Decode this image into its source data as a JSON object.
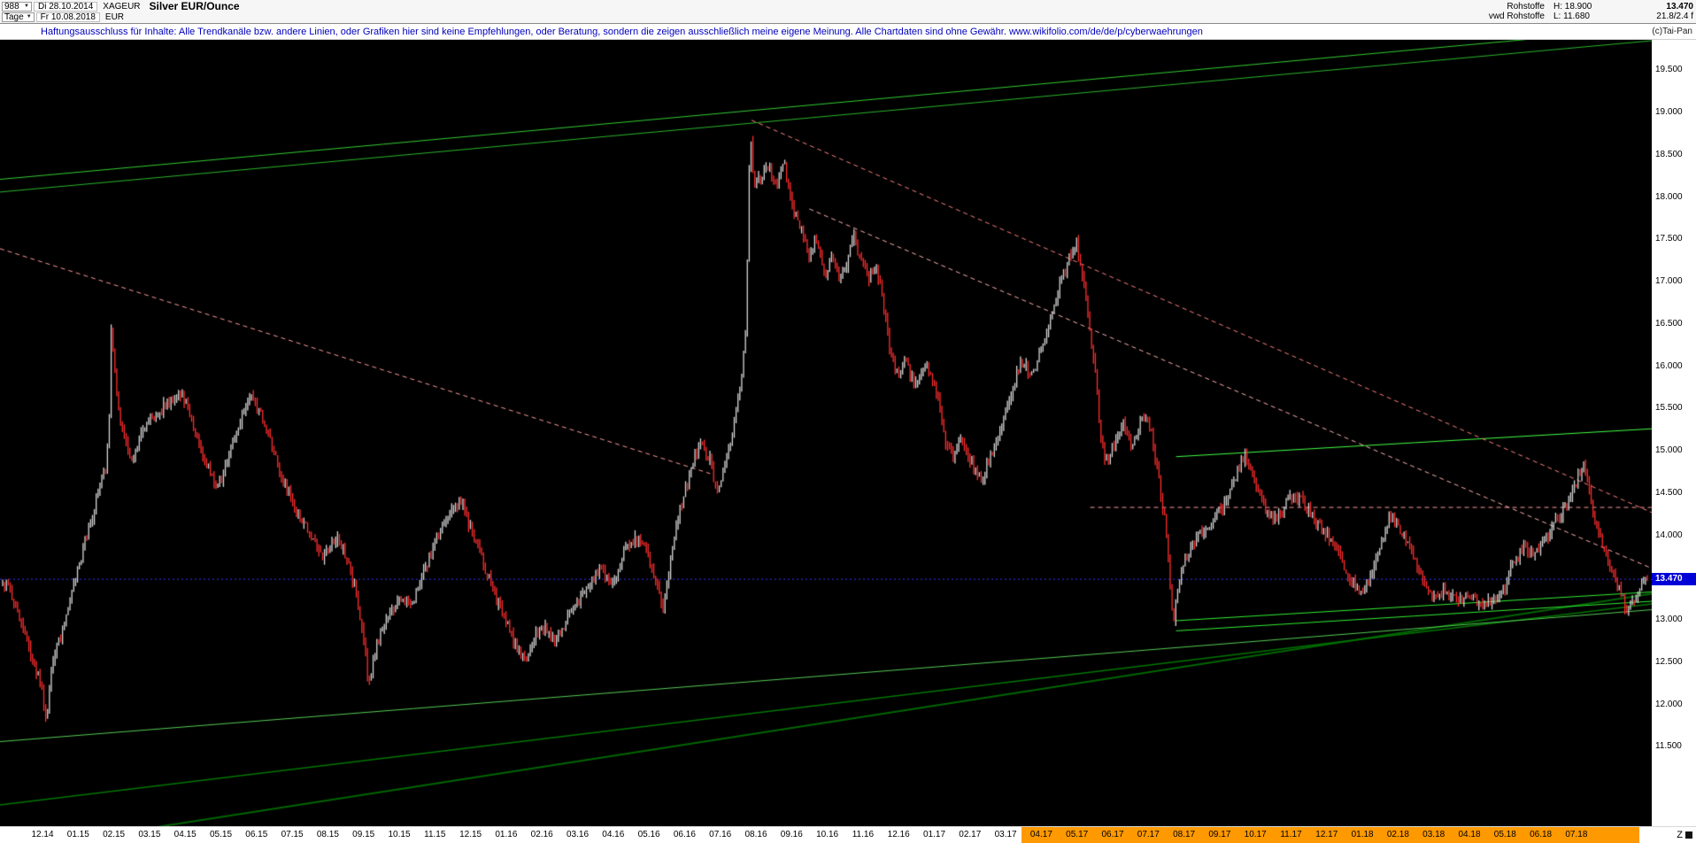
{
  "header": {
    "bars_count": "988",
    "date_start": "Di 28.10.2014",
    "symbol": "XAGEUR",
    "title": "Silver EUR/Ounce",
    "period": "Tage",
    "date_end": "Fr 10.08.2018",
    "currency": "EUR",
    "right": {
      "row1_label": "Rohstoffe",
      "row1_high": "H: 18.900",
      "row1_price": "13.470",
      "row2_label": "vwd Rohstoffe",
      "row2_low": "L: 11.680",
      "row2_extra": "21.8/2.4 f"
    }
  },
  "disclaimer": {
    "text": "Haftungsausschluss für Inhalte: Alle Trendkanäle bzw. andere Linien, oder Grafiken hier sind keine Empfehlungen, oder Beratung, sondern die zeigen ausschließlich meine eigene Meinung. Alle Chartdaten sind ohne Gewähr.  www.wikifolio.com/de/de/p/cyberwaehrungen",
    "copyright": "(c)Tai-Pan"
  },
  "corner_label": "Z",
  "chart_data": {
    "type": "ohlc-bar",
    "title": "Silver EUR/Ounce",
    "symbol": "XAGEUR",
    "currency": "EUR",
    "period": "Tage",
    "bars": "988",
    "date_range": [
      "Di 28.10.2014",
      "Fr 10.08.2018"
    ],
    "high": 18.9,
    "low": 11.68,
    "last": 13.47,
    "last_label": "13.470",
    "ylim": [
      10.55,
      19.85
    ],
    "y_ticks": [
      "19.500",
      "19.000",
      "18.500",
      "18.000",
      "17.500",
      "17.000",
      "16.500",
      "16.000",
      "15.500",
      "15.000",
      "14.500",
      "14.000",
      "13.500",
      "13.000",
      "12.500",
      "12.000",
      "11.500"
    ],
    "x_labels": [
      "12.14",
      "01.15",
      "02.15",
      "03.15",
      "04.15",
      "05.15",
      "06.15",
      "07.15",
      "08.15",
      "09.15",
      "10.15",
      "11.15",
      "12.15",
      "01.16",
      "02.16",
      "03.16",
      "04.16",
      "05.16",
      "06.16",
      "07.16",
      "08.16",
      "09.16",
      "10.16",
      "11.16",
      "12.16",
      "01.17",
      "02.17",
      "03.17",
      "04.17",
      "05.17",
      "06.17",
      "07.17",
      "08.17",
      "09.17",
      "10.17",
      "11.17",
      "12.17",
      "01.18",
      "02.18",
      "03.18",
      "04.18",
      "05.18",
      "06.18",
      "07.18"
    ],
    "x_highlight_start_index": 28,
    "plot": {
      "top_price": 19.85,
      "bottom_price": 10.55,
      "render_bars": 880,
      "bar_width": 1.3,
      "wiggle": 0.12,
      "x_first": 48,
      "x_step": 40.3
    },
    "colors": {
      "bg": "#000000",
      "bar_up": "#d8d8d8",
      "bar_down": "#ff2e2e",
      "price_tag_bg": "#0000d8",
      "axis_highlight": "#ff9900",
      "disclaimer_text": "#0000bb"
    },
    "price_path": [
      [
        0.003,
        13.37
      ],
      [
        0.01,
        13.05
      ],
      [
        0.018,
        12.48
      ],
      [
        0.024,
        12.2
      ],
      [
        0.0265,
        11.72
      ],
      [
        0.029,
        12.35
      ],
      [
        0.032,
        12.6
      ],
      [
        0.04,
        13.11
      ],
      [
        0.047,
        13.69
      ],
      [
        0.056,
        14.32
      ],
      [
        0.063,
        14.8
      ],
      [
        0.0655,
        15.6
      ],
      [
        0.066,
        16.45
      ],
      [
        0.069,
        15.7
      ],
      [
        0.071,
        15.4
      ],
      [
        0.078,
        14.89
      ],
      [
        0.084,
        15.15
      ],
      [
        0.092,
        15.4
      ],
      [
        0.1,
        15.55
      ],
      [
        0.108,
        15.66
      ],
      [
        0.113,
        15.5
      ],
      [
        0.121,
        14.96
      ],
      [
        0.131,
        14.54
      ],
      [
        0.14,
        15.08
      ],
      [
        0.15,
        15.66
      ],
      [
        0.158,
        15.38
      ],
      [
        0.168,
        14.77
      ],
      [
        0.177,
        14.32
      ],
      [
        0.186,
        14.03
      ],
      [
        0.195,
        13.72
      ],
      [
        0.203,
        13.98
      ],
      [
        0.21,
        13.69
      ],
      [
        0.216,
        13.18
      ],
      [
        0.2205,
        12.6
      ],
      [
        0.222,
        12.25
      ],
      [
        0.228,
        12.71
      ],
      [
        0.235,
        13.05
      ],
      [
        0.241,
        13.27
      ],
      [
        0.248,
        13.14
      ],
      [
        0.255,
        13.52
      ],
      [
        0.261,
        13.78
      ],
      [
        0.269,
        14.2
      ],
      [
        0.278,
        14.41
      ],
      [
        0.288,
        13.9
      ],
      [
        0.298,
        13.34
      ],
      [
        0.307,
        12.89
      ],
      [
        0.318,
        12.5
      ],
      [
        0.327,
        12.96
      ],
      [
        0.336,
        12.73
      ],
      [
        0.346,
        13.09
      ],
      [
        0.355,
        13.3
      ],
      [
        0.363,
        13.6
      ],
      [
        0.371,
        13.37
      ],
      [
        0.379,
        13.85
      ],
      [
        0.388,
        13.98
      ],
      [
        0.396,
        13.52
      ],
      [
        0.402,
        13.14
      ],
      [
        0.41,
        14.16
      ],
      [
        0.418,
        14.75
      ],
      [
        0.424,
        15.08
      ],
      [
        0.43,
        14.87
      ],
      [
        0.434,
        14.48
      ],
      [
        0.439,
        14.79
      ],
      [
        0.445,
        15.3
      ],
      [
        0.449,
        15.85
      ],
      [
        0.452,
        16.42
      ],
      [
        0.4545,
        18.85
      ],
      [
        0.457,
        18.1
      ],
      [
        0.46,
        18.2
      ],
      [
        0.466,
        18.35
      ],
      [
        0.471,
        18.1
      ],
      [
        0.475,
        18.4
      ],
      [
        0.48,
        17.88
      ],
      [
        0.485,
        17.63
      ],
      [
        0.491,
        17.29
      ],
      [
        0.495,
        17.54
      ],
      [
        0.5,
        17.03
      ],
      [
        0.504,
        17.29
      ],
      [
        0.509,
        16.96
      ],
      [
        0.513,
        17.21
      ],
      [
        0.517,
        17.54
      ],
      [
        0.521,
        17.29
      ],
      [
        0.526,
        17.03
      ],
      [
        0.532,
        17.11
      ],
      [
        0.536,
        16.65
      ],
      [
        0.54,
        16.14
      ],
      [
        0.544,
        15.89
      ],
      [
        0.549,
        16.04
      ],
      [
        0.555,
        15.76
      ],
      [
        0.562,
        16.02
      ],
      [
        0.569,
        15.63
      ],
      [
        0.573,
        15.12
      ],
      [
        0.578,
        14.87
      ],
      [
        0.583,
        15.17
      ],
      [
        0.59,
        14.79
      ],
      [
        0.596,
        14.66
      ],
      [
        0.603,
        15.04
      ],
      [
        0.611,
        15.53
      ],
      [
        0.619,
        16.04
      ],
      [
        0.627,
        15.89
      ],
      [
        0.635,
        16.4
      ],
      [
        0.642,
        16.91
      ],
      [
        0.649,
        17.29
      ],
      [
        0.653,
        17.47
      ],
      [
        0.658,
        16.83
      ],
      [
        0.664,
        16.04
      ],
      [
        0.667,
        15.2
      ],
      [
        0.671,
        14.82
      ],
      [
        0.677,
        15.15
      ],
      [
        0.682,
        15.3
      ],
      [
        0.687,
        14.99
      ],
      [
        0.693,
        15.43
      ],
      [
        0.698,
        15.25
      ],
      [
        0.703,
        14.66
      ],
      [
        0.708,
        13.98
      ],
      [
        0.71,
        13.3
      ],
      [
        0.712,
        12.88
      ],
      [
        0.714,
        13.35
      ],
      [
        0.718,
        13.65
      ],
      [
        0.723,
        13.9
      ],
      [
        0.729,
        14.03
      ],
      [
        0.736,
        14.16
      ],
      [
        0.743,
        14.36
      ],
      [
        0.749,
        14.66
      ],
      [
        0.755,
        14.96
      ],
      [
        0.76,
        14.74
      ],
      [
        0.765,
        14.41
      ],
      [
        0.772,
        14.16
      ],
      [
        0.778,
        14.28
      ],
      [
        0.785,
        14.49
      ],
      [
        0.792,
        14.36
      ],
      [
        0.798,
        14.16
      ],
      [
        0.806,
        13.98
      ],
      [
        0.813,
        13.78
      ],
      [
        0.819,
        13.47
      ],
      [
        0.826,
        13.27
      ],
      [
        0.832,
        13.52
      ],
      [
        0.839,
        13.9
      ],
      [
        0.844,
        14.24
      ],
      [
        0.851,
        14.03
      ],
      [
        0.858,
        13.72
      ],
      [
        0.864,
        13.39
      ],
      [
        0.871,
        13.27
      ],
      [
        0.877,
        13.34
      ],
      [
        0.884,
        13.21
      ],
      [
        0.892,
        13.3
      ],
      [
        0.898,
        13.14
      ],
      [
        0.905,
        13.21
      ],
      [
        0.912,
        13.3
      ],
      [
        0.918,
        13.65
      ],
      [
        0.925,
        13.85
      ],
      [
        0.931,
        13.72
      ],
      [
        0.938,
        13.94
      ],
      [
        0.945,
        14.16
      ],
      [
        0.951,
        14.36
      ],
      [
        0.958,
        14.66
      ],
      [
        0.961,
        14.88
      ],
      [
        0.966,
        14.36
      ],
      [
        0.971,
        13.98
      ],
      [
        0.976,
        13.69
      ],
      [
        0.981,
        13.43
      ],
      [
        0.987,
        13.14
      ],
      [
        0.992,
        13.21
      ],
      [
        1.0,
        13.47
      ]
    ],
    "annotations": [
      {
        "name": "upper-channel-line",
        "color": "#33cc33",
        "width": 1,
        "dash": [],
        "points": [
          [
            0,
            18.2
          ],
          [
            1,
            19.99
          ]
        ]
      },
      {
        "name": "upper-channel-line-2",
        "color": "#2bb52b",
        "width": 1,
        "dash": [],
        "points": [
          [
            0,
            18.05
          ],
          [
            1,
            19.84
          ]
        ]
      },
      {
        "name": "support-trendline-main",
        "color": "#006600",
        "width": 2,
        "dash": [],
        "points": [
          [
            0.013,
            10.29
          ],
          [
            1,
            13.3
          ]
        ]
      },
      {
        "name": "support-trendline-2",
        "color": "#007700",
        "width": 1.5,
        "dash": [],
        "points": [
          [
            0,
            10.8
          ],
          [
            1,
            13.18
          ]
        ]
      },
      {
        "name": "support-line-light",
        "color": "#55cc55",
        "width": 1,
        "dash": [],
        "points": [
          [
            0,
            11.55
          ],
          [
            1,
            13.11
          ]
        ]
      },
      {
        "name": "converging-green-1",
        "color": "#33ee33",
        "width": 1,
        "dash": [],
        "points": [
          [
            0.712,
            12.86
          ],
          [
            1,
            13.21
          ]
        ]
      },
      {
        "name": "converging-green-2",
        "color": "#33ee33",
        "width": 1,
        "dash": [],
        "points": [
          [
            0.712,
            12.98
          ],
          [
            1,
            13.32
          ]
        ]
      },
      {
        "name": "resistance-green-15",
        "color": "#44ff44",
        "width": 1,
        "dash": [],
        "points": [
          [
            0.712,
            14.92
          ],
          [
            1,
            15.25
          ]
        ]
      },
      {
        "name": "downtrend-dashed-1",
        "color": "#ff8080",
        "width": 1,
        "dash": [
          5,
          4
        ],
        "points": [
          [
            0.455,
            18.9
          ],
          [
            1,
            14.26
          ]
        ]
      },
      {
        "name": "downtrend-dashed-2",
        "color": "#ffb0b0",
        "width": 1,
        "dash": [
          5,
          4
        ],
        "points": [
          [
            0.49,
            17.85
          ],
          [
            1,
            13.6
          ]
        ]
      },
      {
        "name": "downtrend-dashed-left",
        "color": "#ff9999",
        "width": 1,
        "dash": [
          5,
          4
        ],
        "points": [
          [
            0,
            17.38
          ],
          [
            0.43,
            14.72
          ]
        ]
      },
      {
        "name": "horizontal-dashed-salmon",
        "color": "#ff9999",
        "width": 1,
        "dash": [
          5,
          4
        ],
        "points": [
          [
            0.66,
            14.32
          ],
          [
            1,
            14.32
          ]
        ]
      },
      {
        "name": "current-price-dotted",
        "color": "#3333ff",
        "width": 1,
        "dash": [
          2,
          3
        ],
        "points": [
          [
            0,
            13.47
          ],
          [
            1,
            13.47
          ]
        ]
      }
    ]
  }
}
